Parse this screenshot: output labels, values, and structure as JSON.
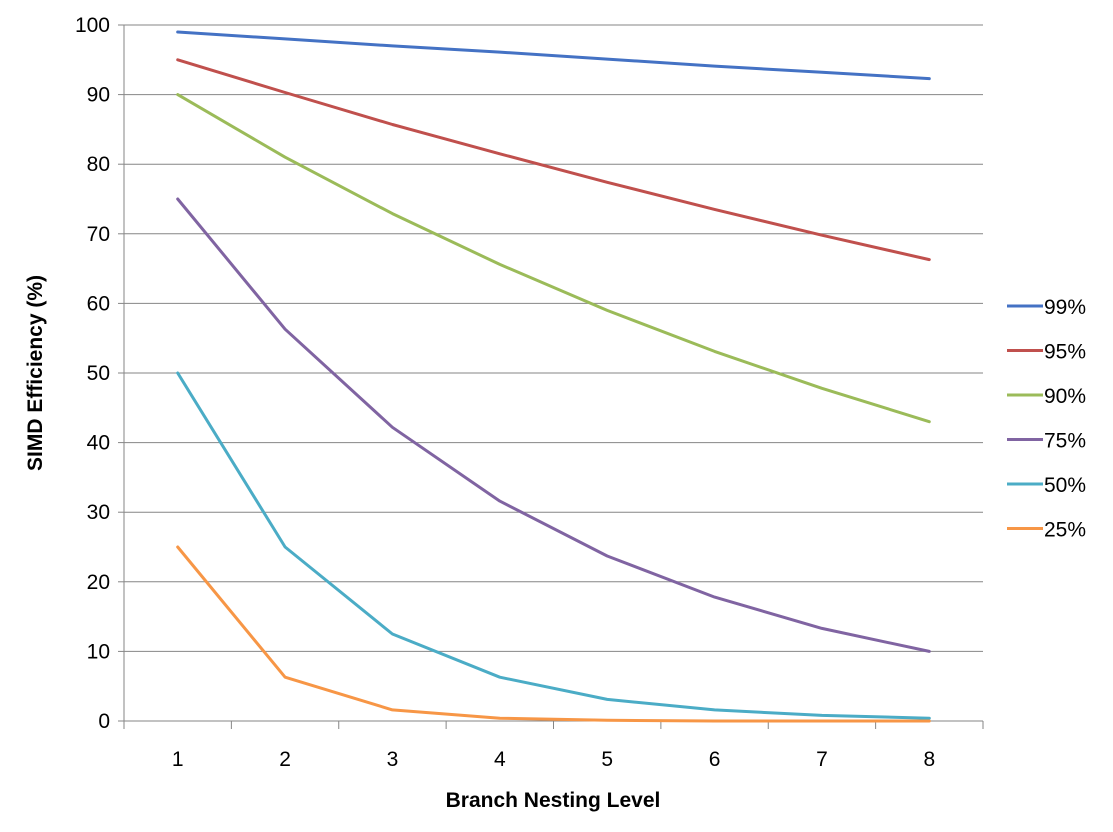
{
  "chart_data": {
    "type": "line",
    "title": "",
    "xlabel": "Branch Nesting Level",
    "ylabel": "SIMD Efficiency (%)",
    "categories": [
      "1",
      "2",
      "3",
      "4",
      "5",
      "6",
      "7",
      "8"
    ],
    "ylim": [
      0,
      100
    ],
    "yticks": [
      0,
      10,
      20,
      30,
      40,
      50,
      60,
      70,
      80,
      90,
      100
    ],
    "grid": "horizontal",
    "legend_position": "right",
    "series": [
      {
        "name": "99%",
        "color": "#4472C4",
        "values": [
          99.0,
          98.0,
          97.0,
          96.1,
          95.1,
          94.1,
          93.2,
          92.3
        ]
      },
      {
        "name": "95%",
        "color": "#C0504D",
        "values": [
          95.0,
          90.3,
          85.7,
          81.5,
          77.4,
          73.5,
          69.8,
          66.3
        ]
      },
      {
        "name": "90%",
        "color": "#9BBB59",
        "values": [
          90.0,
          81.0,
          72.9,
          65.6,
          59.0,
          53.1,
          47.8,
          43.0
        ]
      },
      {
        "name": "75%",
        "color": "#8064A2",
        "values": [
          75.0,
          56.3,
          42.2,
          31.6,
          23.7,
          17.8,
          13.3,
          10.0
        ]
      },
      {
        "name": "50%",
        "color": "#4BACC6",
        "values": [
          50.0,
          25.0,
          12.5,
          6.3,
          3.1,
          1.6,
          0.8,
          0.4
        ]
      },
      {
        "name": "25%",
        "color": "#F79646",
        "values": [
          25.0,
          6.3,
          1.6,
          0.4,
          0.1,
          0.0,
          0.0,
          0.0
        ]
      }
    ]
  }
}
